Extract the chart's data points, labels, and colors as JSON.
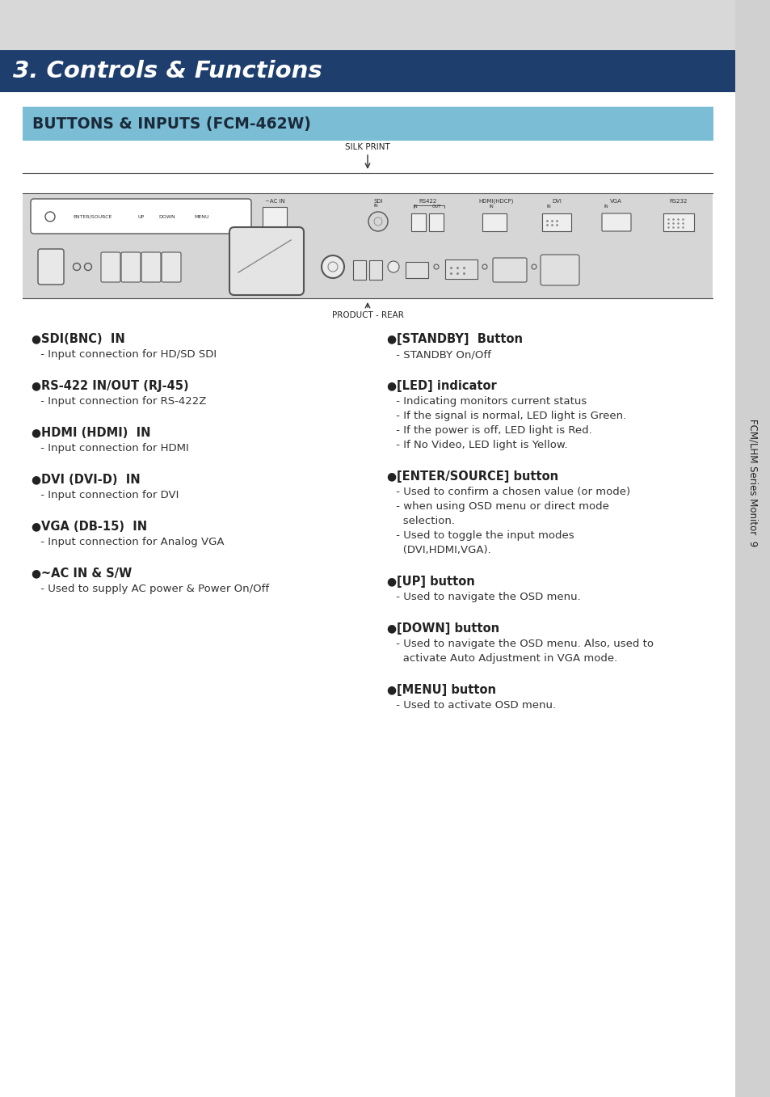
{
  "page_bg": "#d8d8d8",
  "content_bg": "#ffffff",
  "title_bar_color": "#1e3f6e",
  "subtitle_bar_color": "#7bbdd4",
  "title_text": "3. Controls & Functions",
  "title_text_color": "#ffffff",
  "subtitle_text": "BUTTONS & INPUTS (FCM-462W)",
  "subtitle_text_color": "#1a2a3a",
  "sidebar_bg": "#d0d0d0",
  "sidebar_text": "FCM/LHM Series Monitor  9",
  "sidebar_text_color": "#222222",
  "silk_print_label": "SILK PRINT",
  "product_rear_label": "PRODUCT - REAR",
  "left_items": [
    {
      "header": "SDI(BNC)  IN",
      "desc": " - Input connection for HD/SD SDI"
    },
    {
      "header": "RS-422 IN/OUT (RJ-45)",
      "desc": " - Input connection for RS-422Z"
    },
    {
      "header": "HDMI (HDMI)  IN",
      "desc": " - Input connection for HDMI"
    },
    {
      "header": "DVI (DVI-D)  IN",
      "desc": " - Input connection for DVI"
    },
    {
      "header": "VGA (DB-15)  IN",
      "desc": " - Input connection for Analog VGA"
    },
    {
      "header": "~AC IN & S/W",
      "desc": " - Used to supply AC power & Power On/Off"
    }
  ],
  "right_items": [
    {
      "header": "[STANDBY]  Button",
      "desc": " - STANDBY On/Off"
    },
    {
      "header": "[LED] indicator",
      "desc": " - Indicating monitors current status\n - If the signal is normal, LED light is Green.\n - If the power is off, LED light is Red.\n - If No Video, LED light is Yellow."
    },
    {
      "header": "[ENTER/SOURCE] button",
      "desc": " - Used to confirm a chosen value (or mode)\n - when using OSD menu or direct mode\n   selection.\n - Used to toggle the input modes\n   (DVI,HDMI,VGA)."
    },
    {
      "header": "[UP] button",
      "desc": " - Used to navigate the OSD menu."
    },
    {
      "header": "[DOWN] button",
      "desc": " - Used to navigate the OSD menu. Also, used to\n   activate Auto Adjustment in VGA mode."
    },
    {
      "header": "[MENU] button",
      "desc": " - Used to activate OSD menu."
    }
  ]
}
